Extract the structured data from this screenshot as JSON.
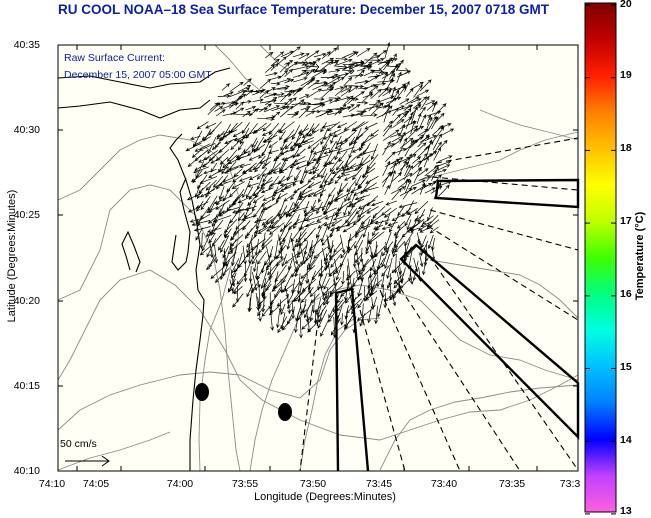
{
  "title": "RU COOL  NOAA–18  Sea Surface Temperature:  December 15, 2007 0718 GMT",
  "annotation": {
    "line1": "Raw Surface Current:",
    "line2": "December 15, 2007 05:00 GMT"
  },
  "axes": {
    "xlabel": "Longitude (Degrees:Minutes)",
    "ylabel": "Latitude (Degrees:Minutes)",
    "xticks": [
      "74:10",
      "74:05",
      "74:00",
      "73:55",
      "73:50",
      "73:45",
      "73:40",
      "73:35",
      "73:3"
    ],
    "yticks": [
      "40:35",
      "40:30",
      "40:25",
      "40:20",
      "40:15",
      "40:10"
    ]
  },
  "colorbar": {
    "label": "Temperature (°C)",
    "ticks": [
      "20",
      "19",
      "18",
      "17",
      "16",
      "15",
      "14",
      "13"
    ],
    "min": 13,
    "max": 20,
    "colors": [
      "#ff60e0",
      "#c040ff",
      "#0000ff",
      "#0080ff",
      "#00c0ff",
      "#00ffe0",
      "#00ff80",
      "#40ff00",
      "#c0ff00",
      "#ffff00",
      "#ffc000",
      "#ff8000",
      "#ff2000",
      "#c00000",
      "#800000"
    ]
  },
  "scale": {
    "label": "50 cm/s"
  },
  "colors": {
    "land": "#fffff6",
    "coast": "#000000",
    "contour": "#888888",
    "title": "#0b1fa8"
  }
}
